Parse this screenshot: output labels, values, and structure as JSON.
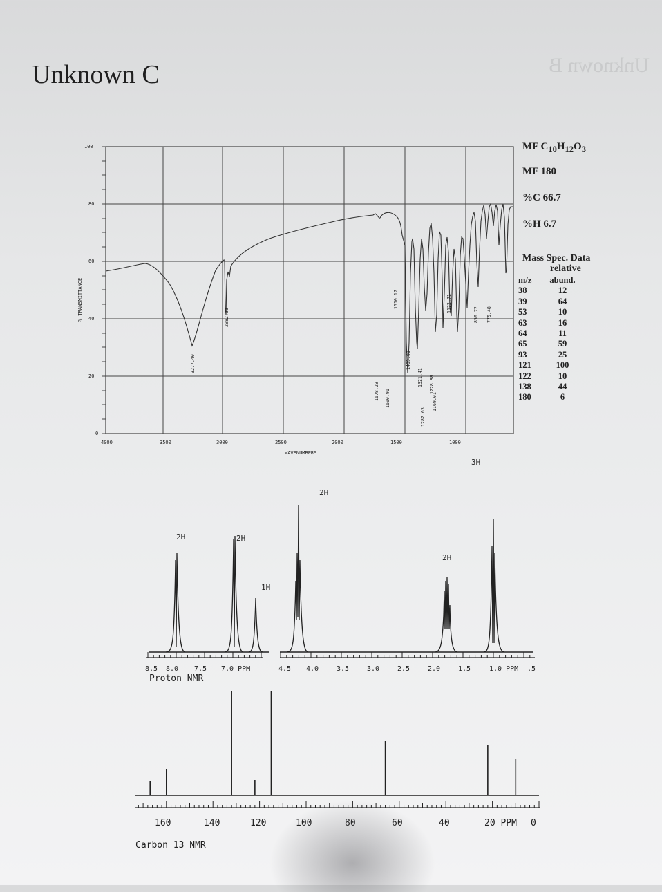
{
  "page": {
    "title": "Unknown C",
    "ghost_text": "Unknown B"
  },
  "ir": {
    "y_axis_label": "% TRANSMITTANCE",
    "x_axis_label": "WAVENUMBERS",
    "y_ticks": [
      "100",
      "80",
      "60",
      "40",
      "20",
      "0"
    ],
    "x_ticks": [
      "4000",
      "3500",
      "3000",
      "2500",
      "2000",
      "1500",
      "1000"
    ],
    "peak_labels": [
      "3277.40",
      "2982.33",
      "1678.29",
      "1600.91",
      "1510.17",
      "1439.08",
      "1321.41",
      "1282.63",
      "1228.88",
      "1169.01",
      "1122.71",
      "850.72",
      "775.48"
    ]
  },
  "formula": {
    "mf_prefix": "MF",
    "mf_formula": "C10H12O3",
    "mw_label": "MF 180",
    "pct_c": "%C 66.7",
    "pct_h": "%H 6.7"
  },
  "mass_spec": {
    "title": "Mass Spec. Data",
    "relative": "relative",
    "col_mz": "m/z",
    "col_abund": "abund.",
    "rows": [
      {
        "mz": "38",
        "abund": "12"
      },
      {
        "mz": "39",
        "abund": "64"
      },
      {
        "mz": "53",
        "abund": "10"
      },
      {
        "mz": "63",
        "abund": "16"
      },
      {
        "mz": "64",
        "abund": "11"
      },
      {
        "mz": "65",
        "abund": "59"
      },
      {
        "mz": "93",
        "abund": "25"
      },
      {
        "mz": "121",
        "abund": "100"
      },
      {
        "mz": "122",
        "abund": "10"
      },
      {
        "mz": "138",
        "abund": "44"
      },
      {
        "mz": "180",
        "abund": "6"
      }
    ]
  },
  "proton_nmr": {
    "label": "Proton NMR",
    "integrations": [
      "2H",
      "2H",
      "1H",
      "2H",
      "2H",
      "3H"
    ],
    "axis_left_ticks": [
      "8.5",
      "8.0",
      "7.5",
      "7.0 PPM"
    ],
    "axis_right_ticks": [
      "4.5",
      "4.0",
      "3.5",
      "3.0",
      "2.5",
      "2.0",
      "1.5",
      "1.0 PPM",
      ".5"
    ],
    "peaks_ppm": [
      8.0,
      7.0,
      6.6,
      4.3,
      1.8,
      1.0
    ]
  },
  "carbon_nmr": {
    "label": "Carbon 13 NMR",
    "axis_ticks": [
      "160",
      "140",
      "120",
      "100",
      "80",
      "60",
      "40",
      "20 PPM",
      "0"
    ],
    "peaks_ppm": [
      167,
      160,
      132,
      122,
      115,
      66,
      22,
      10
    ]
  }
}
